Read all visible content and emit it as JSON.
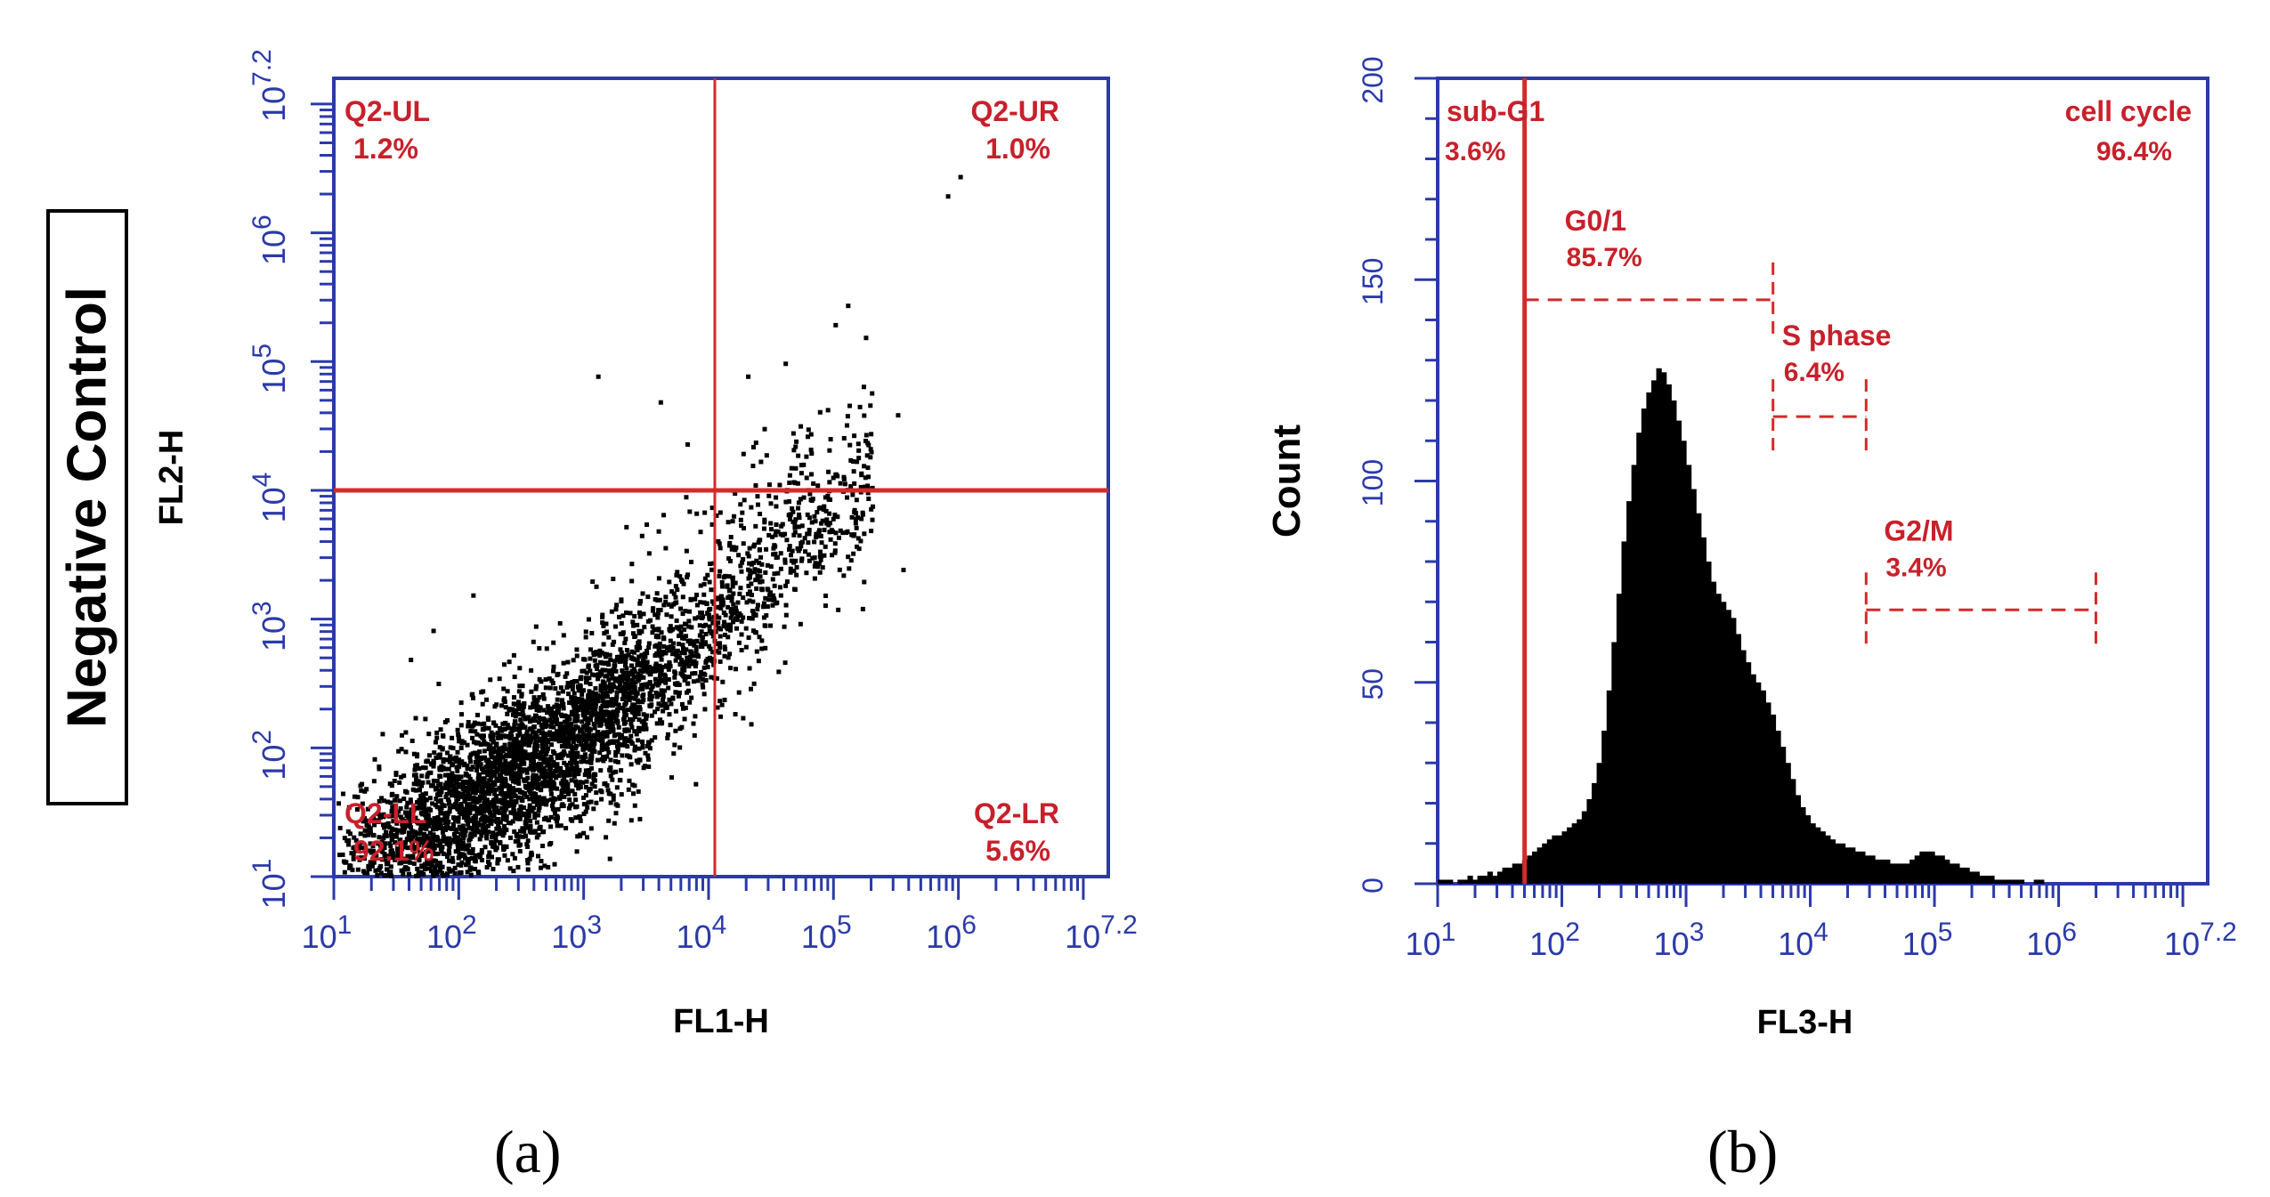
{
  "figure": {
    "side_label": "Negative Control",
    "panel_a_label": "(a)",
    "panel_b_label": "(b)",
    "colors": {
      "axis": "#2b3aa8",
      "gate": "#d42a2a",
      "label": "#c8202a",
      "data": "#000000"
    }
  },
  "chart_data": [
    {
      "type": "scatter",
      "title": "",
      "xlabel": "FL1-H",
      "ylabel": "FL2-H",
      "scale": "log10",
      "xlim": [
        1,
        7.2
      ],
      "ylim": [
        1,
        7.2
      ],
      "x_ticks": [
        {
          "base": "10",
          "exp": "1",
          "value": 1
        },
        {
          "base": "10",
          "exp": "2",
          "value": 2
        },
        {
          "base": "10",
          "exp": "3",
          "value": 3
        },
        {
          "base": "10",
          "exp": "4",
          "value": 4
        },
        {
          "base": "10",
          "exp": "5",
          "value": 5
        },
        {
          "base": "10",
          "exp": "6",
          "value": 6
        },
        {
          "base": "10",
          "exp": "7.2",
          "value": 7.2
        }
      ],
      "y_ticks": [
        {
          "base": "10",
          "exp": "1",
          "value": 1
        },
        {
          "base": "10",
          "exp": "2",
          "value": 2
        },
        {
          "base": "10",
          "exp": "3",
          "value": 3
        },
        {
          "base": "10",
          "exp": "4",
          "value": 4
        },
        {
          "base": "10",
          "exp": "5",
          "value": 5
        },
        {
          "base": "10",
          "exp": "6",
          "value": 6
        },
        {
          "base": "10",
          "exp": "7.2",
          "value": 7.2
        }
      ],
      "gate": {
        "x": 4.05,
        "y": 4.0
      },
      "quadrants": [
        {
          "name": "Q2-UL",
          "percent": "1.2%",
          "position": "top-left"
        },
        {
          "name": "Q2-UR",
          "percent": "1.0%",
          "position": "top-right"
        },
        {
          "name": "Q2-LL",
          "percent": "92.1%",
          "position": "bottom-left"
        },
        {
          "name": "Q2-LR",
          "percent": "5.6%",
          "position": "bottom-right"
        }
      ],
      "events": {
        "description": "Dense diagonal cloud of single-cell events, log FL1-H vs log FL2-H",
        "seed": 7,
        "count": 4500,
        "cloud_center": [
          2.35,
          1.75
        ],
        "cloud_axis": [
          0.82,
          0.57
        ],
        "spread_along": 0.95,
        "spread_across": 0.28,
        "upper_tail_range": [
          3.0,
          5.3
        ],
        "upper_tail_offset": [
          -0.3,
          0.9
        ],
        "outliers": [
          [
            5.0,
            5.3
          ],
          [
            5.1,
            5.45
          ],
          [
            5.5,
            4.6
          ],
          [
            4.5,
            3.2
          ],
          [
            3.1,
            4.9
          ],
          [
            2.1,
            3.2
          ],
          [
            1.6,
            2.7
          ],
          [
            4.6,
            5.0
          ],
          [
            5.9,
            6.3
          ],
          [
            6.0,
            6.45
          ],
          [
            3.6,
            4.7
          ],
          [
            4.3,
            4.9
          ]
        ]
      }
    },
    {
      "type": "histogram",
      "title": "",
      "xlabel": "FL3-H",
      "ylabel": "Count",
      "scale_x": "log10",
      "xlim": [
        1,
        7.2
      ],
      "ylim": [
        0,
        200
      ],
      "x_ticks": [
        {
          "base": "10",
          "exp": "1",
          "value": 1
        },
        {
          "base": "10",
          "exp": "2",
          "value": 2
        },
        {
          "base": "10",
          "exp": "3",
          "value": 3
        },
        {
          "base": "10",
          "exp": "4",
          "value": 4
        },
        {
          "base": "10",
          "exp": "5",
          "value": 5
        },
        {
          "base": "10",
          "exp": "6",
          "value": 6
        },
        {
          "base": "10",
          "exp": "7.2",
          "value": 7.2
        }
      ],
      "y_ticks": [
        0,
        50,
        100,
        150,
        200
      ],
      "sub_g1_gate": 1.7,
      "bins": {
        "start": 1.0,
        "width": 0.04,
        "counts": [
          1,
          1,
          1,
          0,
          1,
          1,
          2,
          1,
          2,
          2,
          3,
          2,
          3,
          4,
          4,
          5,
          5,
          6,
          7,
          8,
          9,
          10,
          11,
          12,
          12,
          13,
          14,
          15,
          16,
          18,
          21,
          25,
          30,
          38,
          48,
          60,
          72,
          85,
          95,
          104,
          112,
          118,
          122,
          125,
          128,
          127,
          124,
          120,
          115,
          110,
          104,
          98,
          92,
          86,
          80,
          75,
          72,
          70,
          68,
          66,
          62,
          58,
          55,
          52,
          50,
          48,
          45,
          42,
          38,
          34,
          30,
          26,
          22,
          19,
          17,
          15,
          14,
          13,
          12,
          11,
          10,
          10,
          9,
          9,
          8,
          8,
          7,
          7,
          6,
          6,
          6,
          5,
          5,
          5,
          5,
          6,
          7,
          8,
          8,
          8,
          7,
          7,
          6,
          5,
          5,
          4,
          4,
          3,
          3,
          2,
          2,
          2,
          1,
          1,
          1,
          1,
          1,
          1,
          0,
          0,
          1,
          1,
          0,
          0,
          0,
          0,
          0,
          0,
          0,
          0,
          0,
          0,
          0,
          0,
          0,
          0,
          0,
          0,
          0,
          0,
          0,
          0,
          0,
          0,
          0,
          0,
          0,
          0,
          0,
          0,
          0,
          0,
          0,
          0,
          0,
          0,
          0
        ]
      },
      "gates": [
        {
          "name": "G0/1",
          "percent": "85.7%",
          "x_start": 1.7,
          "x_end": 3.7,
          "y": 145
        },
        {
          "name": "S phase",
          "percent": "6.4%",
          "x_start": 3.7,
          "x_end": 4.45,
          "y": 116
        },
        {
          "name": "G2/M",
          "percent": "3.4%",
          "x_start": 4.45,
          "x_end": 6.3,
          "y": 68
        }
      ],
      "regions": [
        {
          "name": "sub-G1",
          "percent": "3.6%"
        },
        {
          "name": "cell cycle",
          "percent": "96.4%"
        }
      ]
    }
  ]
}
